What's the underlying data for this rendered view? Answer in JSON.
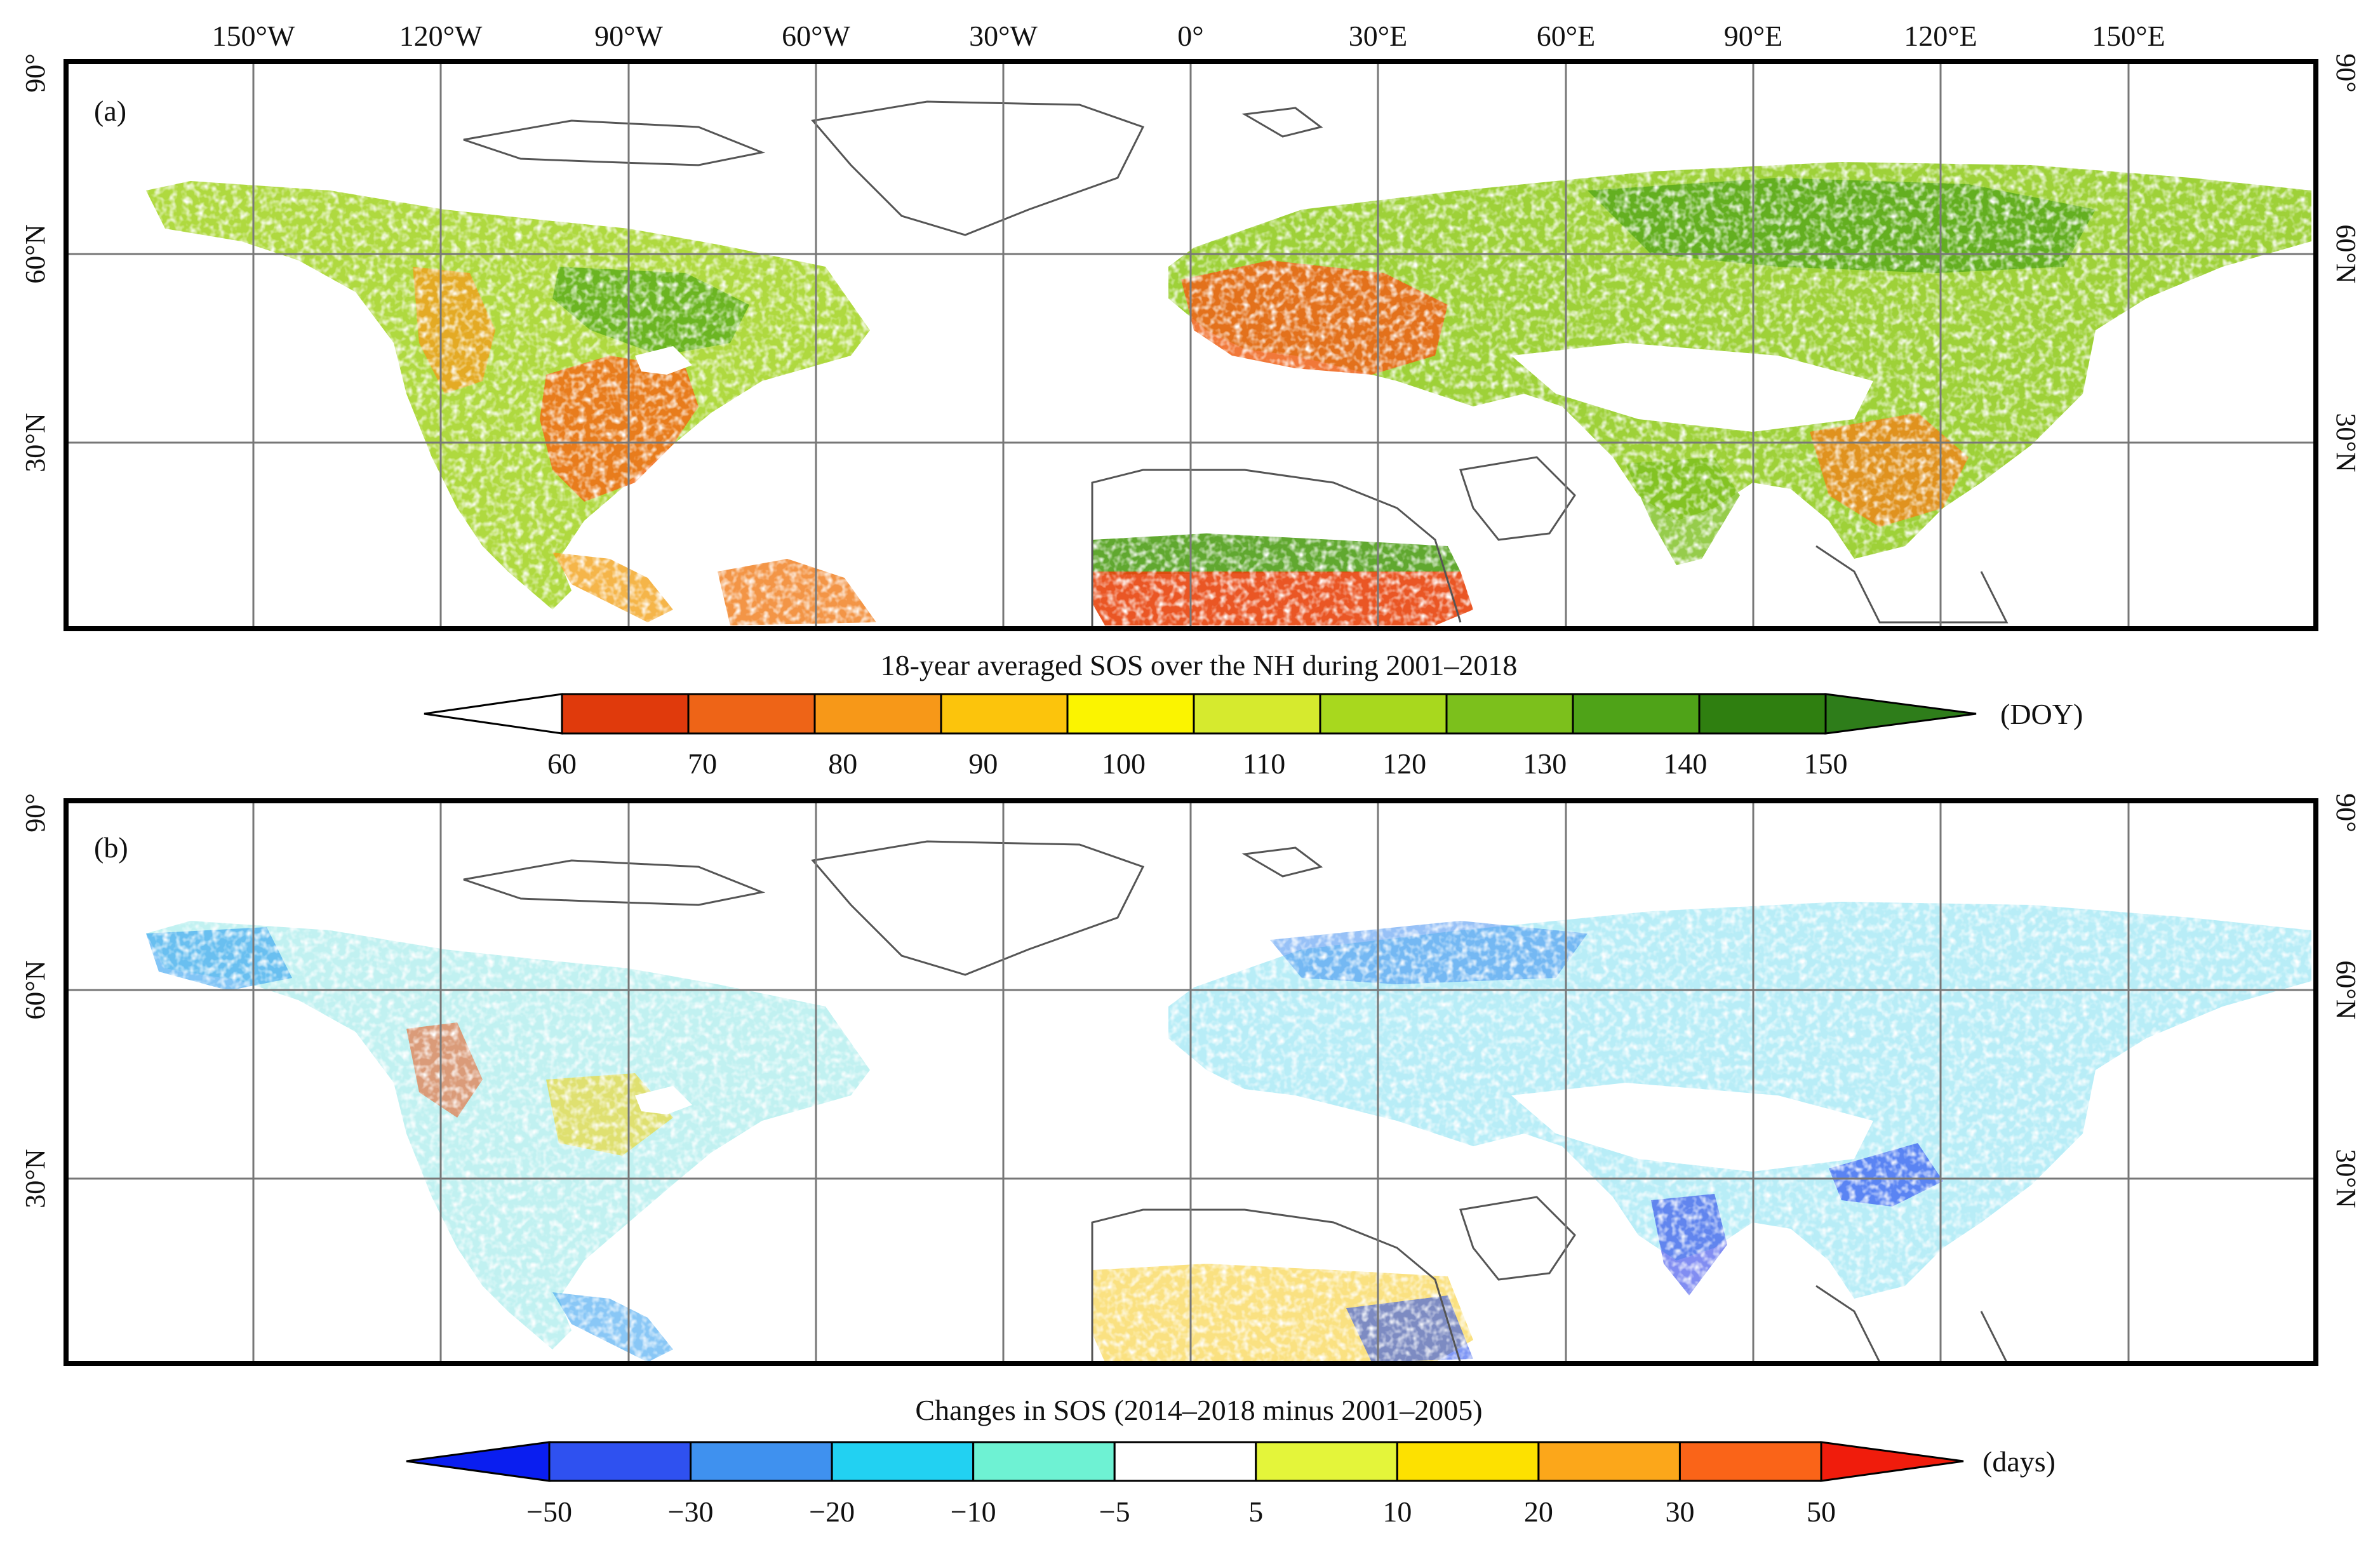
{
  "longitude_labels": [
    "150°W",
    "120°W",
    "90°W",
    "60°W",
    "30°W",
    "0°",
    "30°E",
    "60°E",
    "90°E",
    "120°E",
    "150°E"
  ],
  "latitude_labels": [
    "90°",
    "60°N",
    "30°N"
  ],
  "panels": [
    {
      "id": "a",
      "label": "(a)",
      "colorbar": {
        "title": "18-year averaged SOS over the NH during 2001–2018",
        "unit": "(DOY)",
        "ticks": [
          "60",
          "70",
          "80",
          "90",
          "100",
          "110",
          "120",
          "130",
          "140",
          "150"
        ],
        "colors": [
          "#e03a0c",
          "#ee6417",
          "#f79818",
          "#fcc40c",
          "#fbf400",
          "#d6ea2e",
          "#a8d81e",
          "#7cc01c",
          "#4fa318",
          "#2f7f10"
        ],
        "under_color": "#ffffff",
        "over_color": "#2e7d1a"
      }
    },
    {
      "id": "b",
      "label": "(b)",
      "colorbar": {
        "title": "Changes in SOS (2014–2018 minus 2001–2005)",
        "unit": "(days)",
        "ticks": [
          "−50",
          "−30",
          "−20",
          "−10",
          "−5",
          "5",
          "10",
          "20",
          "30",
          "50"
        ],
        "colors": [
          "#2f51f0",
          "#3f91ef",
          "#22d1f2",
          "#6ef2d3",
          "#ffffff",
          "#e4f53a",
          "#fde100",
          "#fca71a",
          "#fa6418"
        ],
        "under_color": "#0a1ef0",
        "over_color": "#f01c0c"
      }
    }
  ]
}
